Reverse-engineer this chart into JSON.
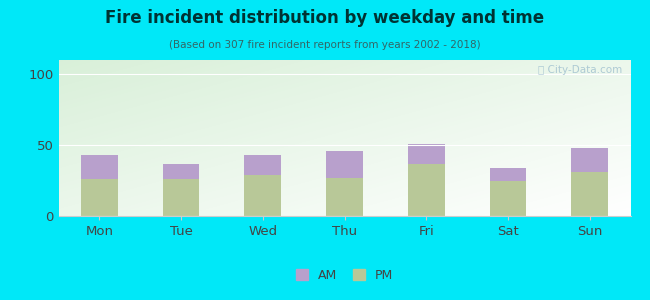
{
  "categories": [
    "Mon",
    "Tue",
    "Wed",
    "Thu",
    "Fri",
    "Sat",
    "Sun"
  ],
  "pm_values": [
    26,
    26,
    29,
    27,
    37,
    25,
    31
  ],
  "am_values": [
    17,
    11,
    14,
    19,
    14,
    9,
    17
  ],
  "am_color": "#b8a0cc",
  "pm_color": "#b8c898",
  "title": "Fire incident distribution by weekday and time",
  "subtitle": "(Based on 307 fire incident reports from years 2002 - 2018)",
  "ylim": [
    0,
    110
  ],
  "yticks": [
    0,
    50,
    100
  ],
  "background_color": "#00e8f8",
  "watermark": "Ⓣ City-Data.com",
  "legend_am": "AM",
  "legend_pm": "PM",
  "title_color": "#003333",
  "subtitle_color": "#336666",
  "tick_color": "#444444",
  "grid_color": "#ffffff",
  "spine_color": "#cccccc"
}
